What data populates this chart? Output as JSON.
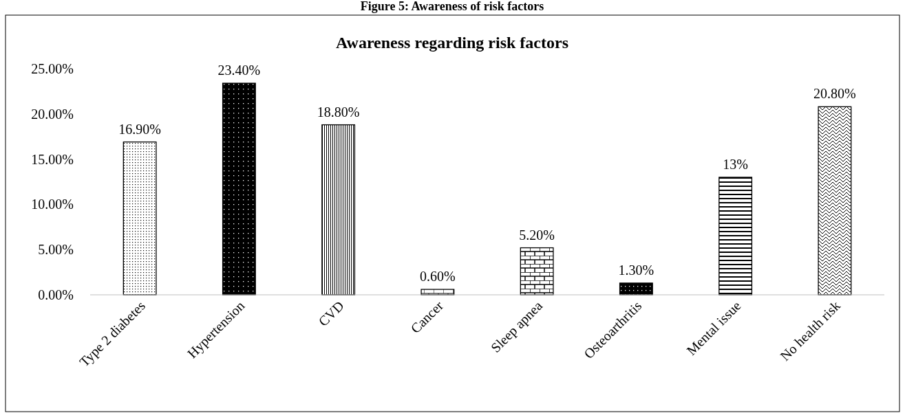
{
  "chart_data": {
    "type": "bar",
    "title": "Awareness regarding risk factors",
    "annotations": [
      "Figure 5: Awareness of risk factors"
    ],
    "categories": [
      "Type 2 diabetes",
      "Hypertension",
      "CVD",
      "Cancer",
      "Sleep apnea",
      "Osteoarthritis",
      "Mental issue",
      "No health risk"
    ],
    "values": [
      16.9,
      23.4,
      18.8,
      0.6,
      5.2,
      1.3,
      13,
      20.8
    ],
    "value_labels": [
      "16.90%",
      "23.40%",
      "18.80%",
      "0.60%",
      "5.20%",
      "1.30%",
      "13%",
      "20.80%"
    ],
    "colors": [
      "#000000",
      "#000000",
      "#000000",
      "#000000",
      "#000000",
      "#000000",
      "#000000",
      "#000000"
    ],
    "ylim": [
      0,
      25
    ],
    "yticks": [
      {
        "value": 0,
        "label": "0.00%"
      },
      {
        "value": 5,
        "label": "5.00%"
      },
      {
        "value": 10,
        "label": "10.00%"
      },
      {
        "value": 15,
        "label": "15.00%"
      },
      {
        "value": 20,
        "label": "20.00%"
      },
      {
        "value": 25,
        "label": "25.00%"
      }
    ],
    "grid": false
  }
}
